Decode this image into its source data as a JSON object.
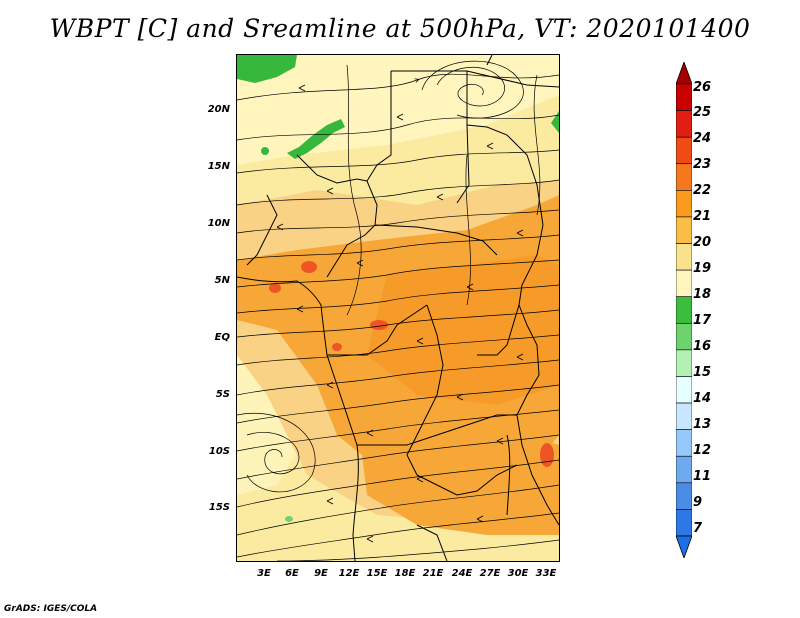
{
  "title": "WBPT [C] and Sreamline at 500hPa, VT: 2020101400",
  "credit": "GrADS: IGES/COLA",
  "lat_ticks": [
    "20N",
    "15N",
    "10N",
    "5N",
    "EQ",
    "5S",
    "10S",
    "15S"
  ],
  "lon_ticks": [
    "3E",
    "6E",
    "9E",
    "12E",
    "15E",
    "18E",
    "21E",
    "24E",
    "27E",
    "30E",
    "33E"
  ],
  "colorbar": {
    "labels": [
      "26",
      "25",
      "24",
      "23",
      "22",
      "21",
      "20",
      "19",
      "18",
      "17",
      "16",
      "15",
      "14",
      "13",
      "12",
      "11",
      "9",
      "7"
    ],
    "top_arrow_color": "#a50000",
    "bottom_arrow_color": "#1e6ee6",
    "colors": [
      "#c80000",
      "#e11e14",
      "#f04b14",
      "#f5781e",
      "#fa9b1e",
      "#fabe46",
      "#fae18c",
      "#fff5be",
      "#3cbe3c",
      "#6ed26e",
      "#b4f0b4",
      "#e6ffff",
      "#c8e6ff",
      "#96c8fa",
      "#6eaaf0",
      "#4a8ce6",
      "#2d78e6"
    ]
  },
  "field_colors": {
    "light": "#faeba0",
    "pale": "#fff6c0",
    "tan": "#fad285",
    "orange": "#f7a737",
    "deep": "#f59926",
    "red": "#ee5525",
    "green": "#36b83c",
    "light_green": "#6fd26f"
  }
}
